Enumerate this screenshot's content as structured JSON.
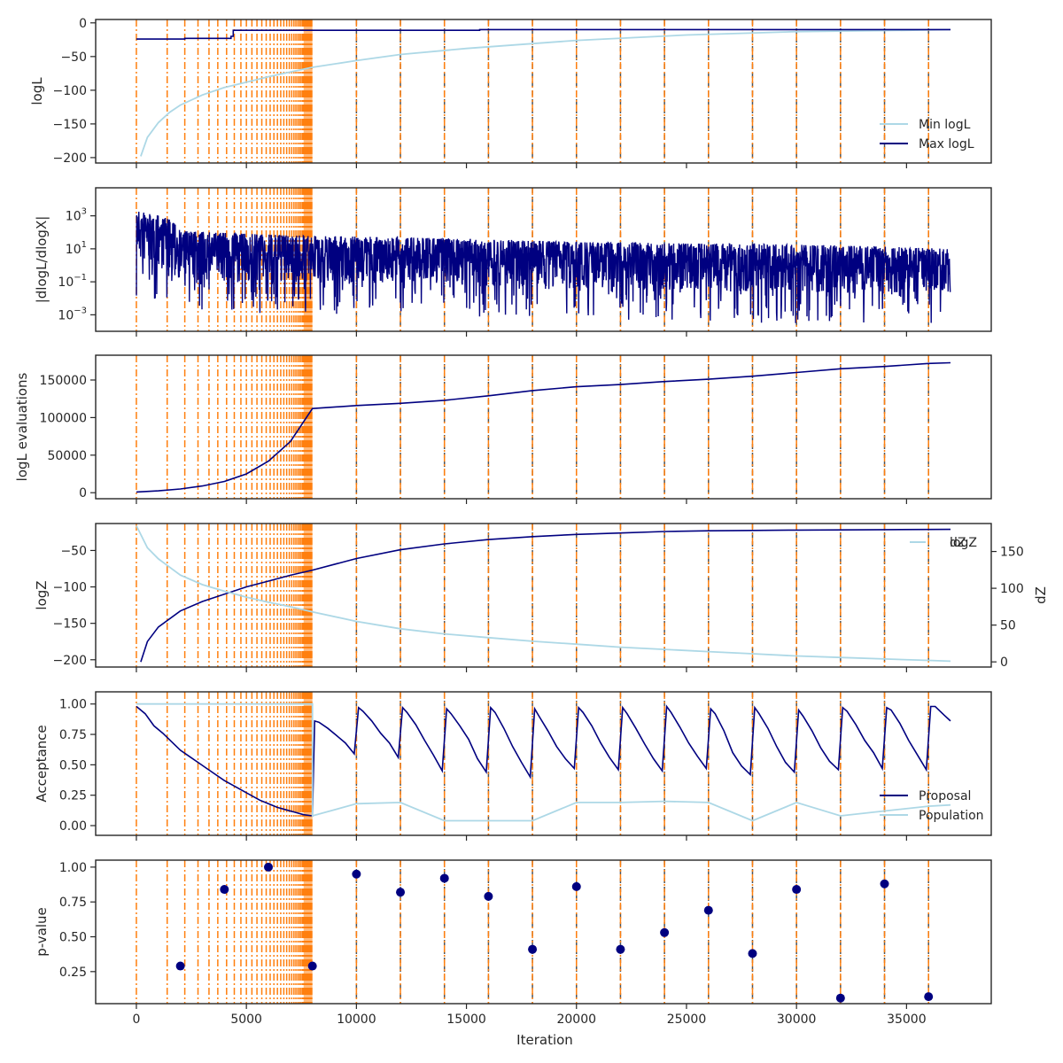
{
  "x_axis": {
    "label": "Iteration",
    "ticks": [
      0,
      5000,
      10000,
      15000,
      20000,
      25000,
      30000,
      35000
    ],
    "range": [
      -1850,
      38850
    ]
  },
  "colors": {
    "dark": "#000080",
    "light": "#add8e6",
    "orange": "#ff7f0e",
    "grey": "#555555"
  },
  "chart_data": [
    {
      "type": "line",
      "ylabel": "logL",
      "ylim": [
        -208,
        5
      ],
      "yticks": [
        0,
        -50,
        -100,
        -150,
        -200
      ],
      "legend": "lower right",
      "series": [
        {
          "name": "Min logL",
          "color": "light",
          "x": [
            200,
            500,
            1000,
            1500,
            2000,
            3000,
            4000,
            5000,
            6000,
            7000,
            8000,
            10000,
            12000,
            15000,
            20000,
            25000,
            30000,
            35000,
            37000
          ],
          "y": [
            -198,
            -170,
            -148,
            -133,
            -122,
            -107,
            -96,
            -88,
            -80,
            -73,
            -66,
            -56,
            -47,
            -38,
            -26,
            -18,
            -13,
            -11,
            -10
          ]
        },
        {
          "name": "Max logL",
          "color": "dark",
          "x": [
            0,
            2200,
            2200,
            4300,
            4300,
            4400,
            4400,
            15600,
            15600,
            37000
          ],
          "y": [
            -24,
            -24,
            -23,
            -23,
            -20,
            -20,
            -11,
            -11,
            -10,
            -10
          ]
        }
      ]
    },
    {
      "type": "line",
      "ylabel": "|dlogL/dlogX|",
      "yscale": "log",
      "ylim": [
        0.0001,
        50000
      ],
      "yticks": [
        "10^3",
        "10^1",
        "10^-1",
        "10^-3"
      ],
      "series": [
        {
          "color": "dark",
          "x": [
            0,
            2000,
            5000,
            8000,
            12000,
            20000,
            30000,
            37000
          ],
          "y_upper": [
            2000,
            120,
            80,
            60,
            50,
            25,
            18,
            10
          ],
          "y_lower": [
            0.01,
            0.001,
            0.001,
            0.001,
            0.001,
            0.0005,
            0.0003,
            0.0003
          ]
        }
      ]
    },
    {
      "type": "line",
      "ylabel": "logL evaluations",
      "ylim": [
        -8000,
        183000
      ],
      "yticks": [
        0,
        50000,
        100000,
        150000
      ],
      "series": [
        {
          "color": "dark",
          "x": [
            0,
            1000,
            2000,
            3000,
            4000,
            5000,
            6000,
            7000,
            8000,
            10000,
            12000,
            14000,
            16000,
            18000,
            20000,
            22000,
            24000,
            26000,
            28000,
            30000,
            32000,
            34000,
            36000,
            37000
          ],
          "y": [
            1000,
            2500,
            5000,
            9000,
            15000,
            25000,
            42000,
            68000,
            112000,
            116000,
            119000,
            123000,
            129000,
            136000,
            141000,
            144000,
            148000,
            151000,
            155000,
            160000,
            165000,
            168000,
            172000,
            173000
          ]
        }
      ]
    },
    {
      "type": "line",
      "ylabel": "logZ",
      "y2label": "dZ",
      "ylim": [
        -210,
        -13
      ],
      "yticks": [
        -50,
        -100,
        -150,
        -200
      ],
      "y2lim": [
        -7,
        188
      ],
      "y2ticks": [
        0,
        50,
        100,
        150
      ],
      "legend": "upper right",
      "series": [
        {
          "name": "logZ",
          "color": "dark",
          "axis": "left",
          "x": [
            200,
            500,
            1000,
            2000,
            3000,
            4000,
            5000,
            6000,
            7000,
            8000,
            10000,
            12000,
            14000,
            16000,
            18000,
            20000,
            22000,
            24000,
            26000,
            28000,
            30000,
            32000,
            34000,
            36000,
            37000
          ],
          "y": [
            -203,
            -175,
            -155,
            -133,
            -120,
            -110,
            -100,
            -92,
            -84,
            -77,
            -61,
            -49,
            -41,
            -35,
            -31,
            -28,
            -26,
            -24,
            -23,
            -22.5,
            -22,
            -21.7,
            -21.4,
            -21.2,
            -21
          ]
        },
        {
          "name": "dZ",
          "color": "light",
          "axis": "right",
          "x": [
            0,
            500,
            1000,
            2000,
            3000,
            4000,
            5000,
            6000,
            7000,
            8000,
            10000,
            12000,
            14000,
            16000,
            18000,
            20000,
            22000,
            24000,
            26000,
            28000,
            30000,
            32000,
            34000,
            36000,
            37000
          ],
          "y": [
            185,
            155,
            140,
            118,
            105,
            96,
            88,
            81,
            75,
            68,
            55,
            45,
            38,
            33,
            28,
            24,
            20,
            17,
            14,
            11,
            8,
            6,
            4,
            2,
            1
          ]
        }
      ]
    },
    {
      "type": "line",
      "ylabel": "Acceptance",
      "ylim": [
        -0.08,
        1.1
      ],
      "yticks": [
        1.0,
        0.75,
        0.5,
        0.25,
        0.0
      ],
      "ytick_labels": [
        "1.00",
        "0.75",
        "0.50",
        "0.25",
        "0.00"
      ],
      "legend": "lower right",
      "series": [
        {
          "name": "Proposal",
          "color": "dark",
          "x": [
            0,
            400,
            800,
            1200,
            1600,
            2000,
            2400,
            2800,
            3200,
            3600,
            4000,
            4400,
            4800,
            5200,
            5600,
            6000,
            6400,
            6800,
            7200,
            7600,
            8000,
            8100,
            8300,
            8700,
            9100,
            9500,
            9900,
            10100,
            10300,
            10700,
            11100,
            11500,
            11900,
            12100,
            12300,
            12700,
            13100,
            13500,
            13900,
            14100,
            14300,
            14700,
            15100,
            15500,
            15900,
            16100,
            16300,
            16700,
            17100,
            17500,
            17900,
            18100,
            18300,
            18700,
            19100,
            19500,
            19900,
            20100,
            20300,
            20700,
            21100,
            21500,
            21900,
            22100,
            22300,
            22700,
            23100,
            23500,
            23900,
            24100,
            24300,
            24700,
            25100,
            25500,
            25900,
            26100,
            26300,
            26700,
            27100,
            27500,
            27900,
            28100,
            28300,
            28700,
            29100,
            29500,
            29900,
            30100,
            30300,
            30700,
            31100,
            31500,
            31900,
            32100,
            32300,
            32700,
            33100,
            33500,
            33900,
            34100,
            34300,
            34700,
            35100,
            35500,
            35900,
            36100,
            36300,
            36700,
            37000
          ],
          "y": [
            0.98,
            0.92,
            0.82,
            0.76,
            0.69,
            0.62,
            0.57,
            0.52,
            0.47,
            0.42,
            0.37,
            0.33,
            0.29,
            0.25,
            0.21,
            0.18,
            0.15,
            0.13,
            0.11,
            0.09,
            0.08,
            0.86,
            0.85,
            0.8,
            0.74,
            0.68,
            0.59,
            0.97,
            0.94,
            0.86,
            0.76,
            0.68,
            0.56,
            0.97,
            0.93,
            0.83,
            0.7,
            0.58,
            0.45,
            0.96,
            0.92,
            0.82,
            0.71,
            0.55,
            0.44,
            0.97,
            0.93,
            0.8,
            0.65,
            0.52,
            0.4,
            0.96,
            0.9,
            0.78,
            0.65,
            0.55,
            0.47,
            0.97,
            0.93,
            0.82,
            0.68,
            0.56,
            0.46,
            0.97,
            0.92,
            0.8,
            0.67,
            0.55,
            0.45,
            0.98,
            0.93,
            0.81,
            0.68,
            0.57,
            0.47,
            0.96,
            0.92,
            0.78,
            0.6,
            0.49,
            0.42,
            0.97,
            0.92,
            0.8,
            0.65,
            0.52,
            0.44,
            0.95,
            0.9,
            0.78,
            0.64,
            0.53,
            0.46,
            0.97,
            0.94,
            0.83,
            0.7,
            0.6,
            0.47,
            0.97,
            0.95,
            0.84,
            0.7,
            0.58,
            0.46,
            0.98,
            0.98,
            0.91,
            0.86
          ]
        },
        {
          "name": "Population",
          "color": "light",
          "x": [
            0,
            8000,
            8000,
            10000,
            12000,
            14000,
            16000,
            18000,
            20000,
            22000,
            24000,
            26000,
            28000,
            30000,
            32000,
            34000,
            36000,
            37000
          ],
          "y": [
            1.0,
            1.0,
            0.08,
            0.18,
            0.19,
            0.04,
            0.04,
            0.04,
            0.19,
            0.19,
            0.2,
            0.19,
            0.04,
            0.19,
            0.08,
            0.12,
            0.16,
            0.17
          ]
        }
      ]
    },
    {
      "type": "scatter",
      "ylabel": "p-value",
      "xlabel": "Iteration",
      "ylim": [
        0.02,
        1.05
      ],
      "yticks": [
        1.0,
        0.75,
        0.5,
        0.25
      ],
      "ytick_labels": [
        "1.00",
        "0.75",
        "0.50",
        "0.25"
      ],
      "series": [
        {
          "color": "dark",
          "x": [
            2000,
            4000,
            6000,
            8000,
            10000,
            12000,
            14000,
            16000,
            18000,
            20000,
            22000,
            24000,
            26000,
            28000,
            30000,
            32000,
            34000,
            36000
          ],
          "y": [
            0.29,
            0.84,
            1.0,
            0.29,
            0.95,
            0.82,
            0.92,
            0.79,
            0.41,
            0.86,
            0.41,
            0.53,
            0.69,
            0.38,
            0.84,
            0.06,
            0.88,
            0.07
          ]
        }
      ]
    }
  ],
  "vlines": {
    "orange_dashdot": [
      0,
      1400,
      2200,
      2800,
      3300,
      3700,
      4100,
      4450,
      4750,
      5000,
      5250,
      5480,
      5700,
      5900,
      6080,
      6250,
      6410,
      6560,
      6700,
      6830,
      6950,
      7060,
      7160,
      7250,
      7340,
      7420,
      7490,
      7560,
      7620,
      7680,
      7730,
      7780,
      7820,
      7860,
      7900,
      7940,
      7970
    ],
    "dark_dashed": [
      10000,
      12000,
      14000,
      16000,
      18000,
      20000,
      22000,
      24000,
      26000,
      28000,
      30000,
      32000,
      34000,
      36000
    ],
    "orange_band": [
      7600,
      8000
    ]
  }
}
